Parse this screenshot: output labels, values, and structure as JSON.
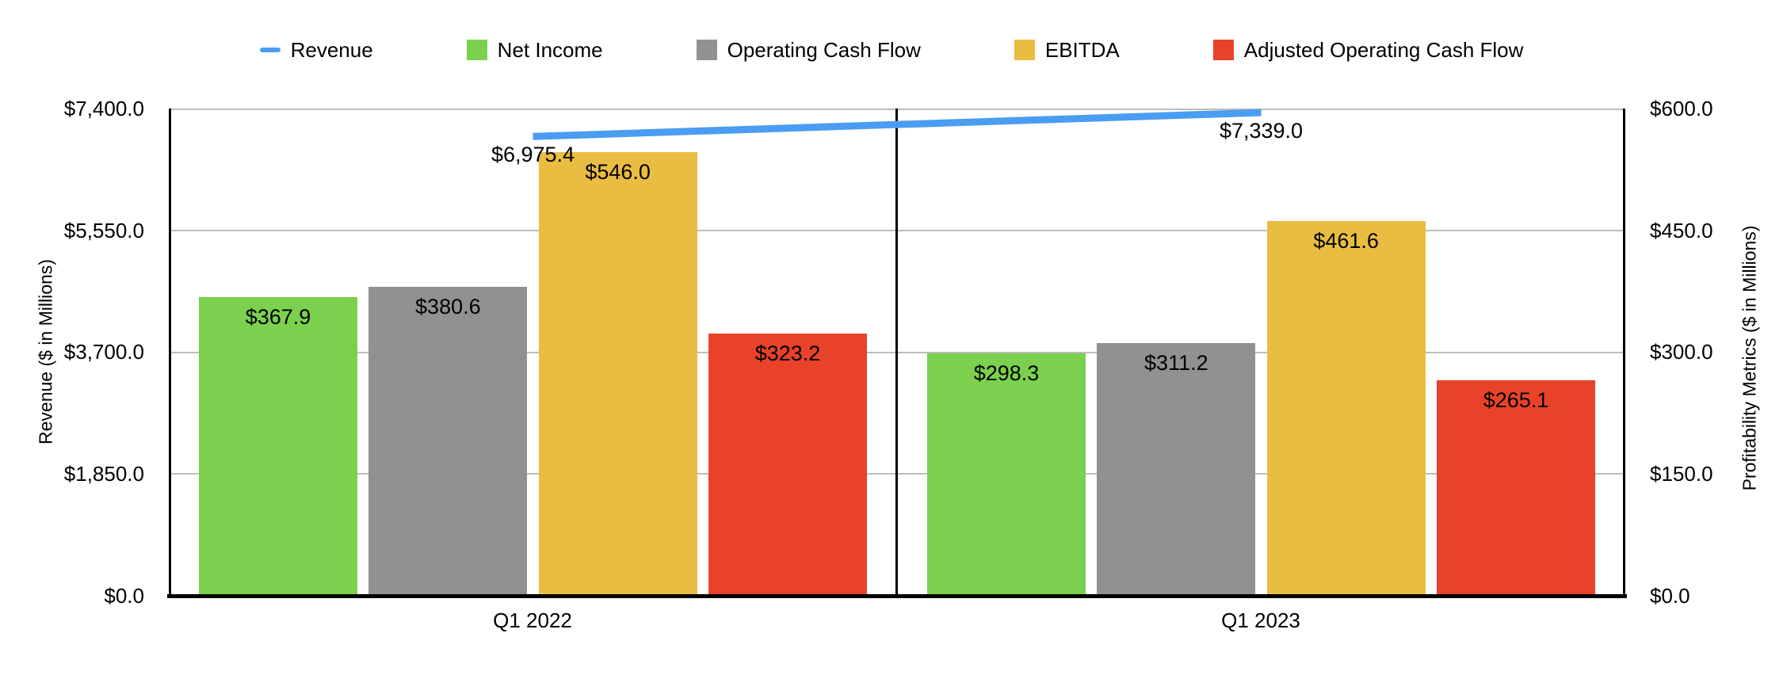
{
  "legend": {
    "items": [
      {
        "label": "Revenue",
        "marker": "line-dash",
        "color": "#4a9df2"
      },
      {
        "label": "Net Income",
        "marker": "square",
        "color": "#7bd14e"
      },
      {
        "label": "Operating Cash Flow",
        "marker": "square",
        "color": "#919191"
      },
      {
        "label": "EBITDA",
        "marker": "square",
        "color": "#e9bc42"
      },
      {
        "label": "Adjusted Operating Cash Flow",
        "marker": "square",
        "color": "#e8432a"
      }
    ]
  },
  "chart_data": {
    "type": "combo-bar-line",
    "categories": [
      "Q1 2022",
      "Q1 2023"
    ],
    "series": [
      {
        "name": "Revenue",
        "type": "line",
        "axis": "left",
        "color": "#4a9df2",
        "values": [
          6975.4,
          7339.0
        ],
        "labels": [
          "$6,975.4",
          "$7,339.0"
        ]
      },
      {
        "name": "Net Income",
        "type": "bar",
        "axis": "right",
        "color": "#7bd14e",
        "values": [
          367.9,
          298.3
        ],
        "labels": [
          "$367.9",
          "$298.3"
        ]
      },
      {
        "name": "Operating Cash Flow",
        "type": "bar",
        "axis": "right",
        "color": "#919191",
        "values": [
          380.6,
          311.2
        ],
        "labels": [
          "$380.6",
          "$311.2"
        ]
      },
      {
        "name": "EBITDA",
        "type": "bar",
        "axis": "right",
        "color": "#e9bc42",
        "values": [
          546.0,
          461.6
        ],
        "labels": [
          "$546.0",
          "$461.6"
        ]
      },
      {
        "name": "Adjusted Operating Cash Flow",
        "type": "bar",
        "axis": "right",
        "color": "#e8432a",
        "values": [
          323.2,
          265.1
        ],
        "labels": [
          "$323.2",
          "$265.1"
        ]
      }
    ],
    "left_axis": {
      "title": "Revenue ($ in Millions)",
      "min": 0,
      "max": 7400,
      "ticks": [
        "$7,400.0",
        "$5,550.0",
        "$3,700.0",
        "$1,850.0",
        "$0.0"
      ]
    },
    "right_axis": {
      "title": "Profitability Metrics ($ in Millions)",
      "min": 0,
      "max": 600,
      "ticks": [
        "$600.0",
        "$450.0",
        "$300.0",
        "$150.0",
        "$0.0"
      ]
    },
    "grid": true,
    "legend_position": "top",
    "colors": {
      "grid": "#bdbdbd",
      "axis": "#000000",
      "background": "#ffffff"
    }
  }
}
